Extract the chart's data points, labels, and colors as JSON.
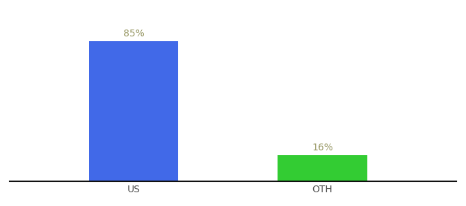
{
  "categories": [
    "US",
    "OTH"
  ],
  "values": [
    85,
    16
  ],
  "bar_colors": [
    "#4169e8",
    "#33cc33"
  ],
  "label_texts": [
    "85%",
    "16%"
  ],
  "label_color": "#999966",
  "label_fontsize": 10,
  "tick_fontsize": 10,
  "tick_color": "#555555",
  "background_color": "#ffffff",
  "bar_width": 0.18,
  "ylim": [
    0,
    100
  ],
  "spine_color": "#111111",
  "x_positions": [
    0.3,
    0.68
  ]
}
